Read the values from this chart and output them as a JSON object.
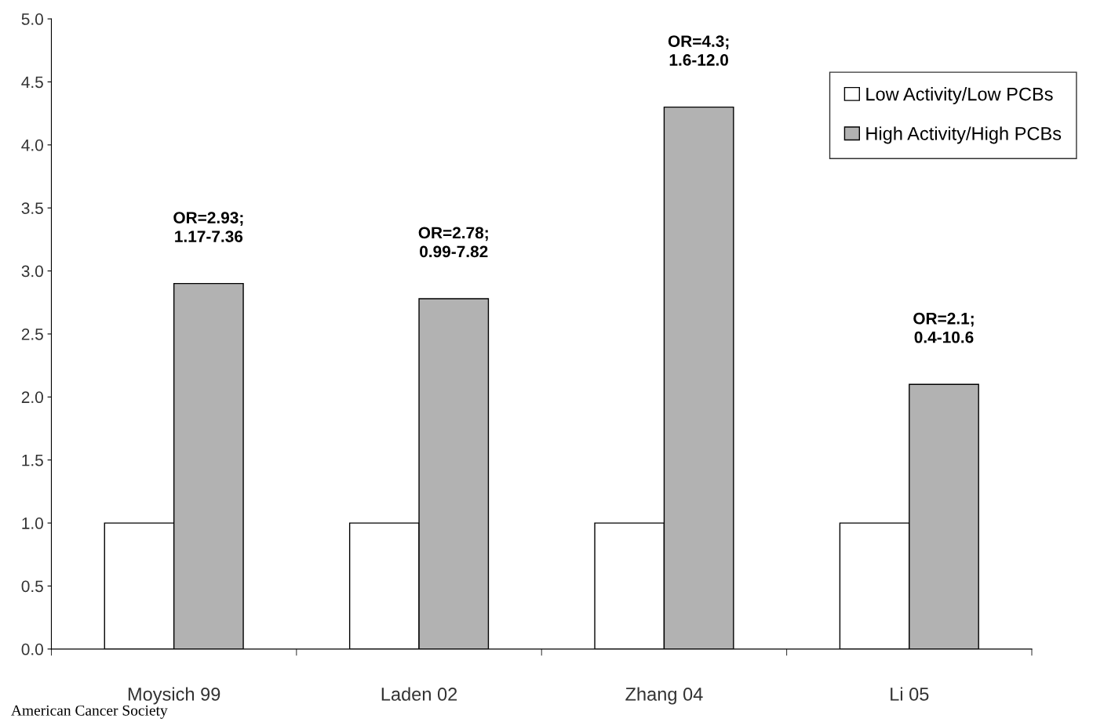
{
  "chart_data": {
    "type": "bar",
    "categories": [
      "Moysich 99",
      "Laden 02",
      "Zhang 04",
      "Li 05"
    ],
    "series": [
      {
        "name": "Low Activity/Low PCBs",
        "color": "#ffffff",
        "values": [
          1.0,
          1.0,
          1.0,
          1.0
        ]
      },
      {
        "name": "High Activity/High PCBs",
        "color": "#b2b2b2",
        "values": [
          2.9,
          2.78,
          4.3,
          2.1
        ]
      }
    ],
    "ylim": [
      0,
      5
    ],
    "yticks": [
      {
        "value": 0,
        "label": "0.0"
      },
      {
        "value": 0.5,
        "label": "0.5"
      },
      {
        "value": 1,
        "label": "1.0"
      },
      {
        "value": 1.5,
        "label": "1.5"
      },
      {
        "value": 2,
        "label": "2.0"
      },
      {
        "value": 2.5,
        "label": "2.5"
      },
      {
        "value": 3,
        "label": "3.0"
      },
      {
        "value": 3.5,
        "label": "3.5"
      },
      {
        "value": 4,
        "label": "4.0"
      },
      {
        "value": 4.5,
        "label": "4.5"
      },
      {
        "value": 5,
        "label": "5.0"
      }
    ],
    "annotations": [
      {
        "text": "OR=2.93;\n1.17-7.36",
        "x": "Moysich 99",
        "y": 2.9
      },
      {
        "text": "OR=2.78;\n0.99-7.82",
        "x": "Laden 02",
        "y": 2.78
      },
      {
        "text": "OR=4.3;\n1.6-12.0",
        "x": "Zhang 04",
        "y": 4.3
      },
      {
        "text": "OR=2.1;\n0.4-10.6",
        "x": "Li 05",
        "y": 2.1
      },
      "American Cancer Society"
    ],
    "grid": false,
    "legend": "top right"
  }
}
